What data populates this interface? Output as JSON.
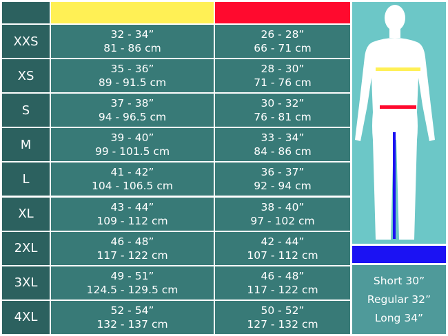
{
  "header": {
    "chest_color": "#fff055",
    "waist_color": "#ff0a2e"
  },
  "rows": [
    {
      "size": "XXS",
      "chest_in": "32 - 34”",
      "chest_cm": "81 - 86 cm",
      "waist_in": "26 - 28”",
      "waist_cm": "66 - 71 cm"
    },
    {
      "size": "XS",
      "chest_in": "35 - 36”",
      "chest_cm": "89 - 91.5 cm",
      "waist_in": "28 - 30”",
      "waist_cm": "71 - 76 cm"
    },
    {
      "size": "S",
      "chest_in": "37 - 38”",
      "chest_cm": "94 - 96.5 cm",
      "waist_in": "30 - 32”",
      "waist_cm": "76 - 81 cm"
    },
    {
      "size": "M",
      "chest_in": "39 - 40”",
      "chest_cm": "99 - 101.5 cm",
      "waist_in": "33 - 34”",
      "waist_cm": "84 - 86 cm"
    },
    {
      "size": "L",
      "chest_in": "41 - 42”",
      "chest_cm": "104 - 106.5 cm",
      "waist_in": "36 - 37”",
      "waist_cm": "92 - 94 cm"
    },
    {
      "size": "XL",
      "chest_in": "43 - 44”",
      "chest_cm": "109 - 112 cm",
      "waist_in": "38 - 40”",
      "waist_cm": "97 - 102 cm"
    },
    {
      "size": "2XL",
      "chest_in": "46 - 48”",
      "chest_cm": "117 - 122 cm",
      "waist_in": "42 - 44”",
      "waist_cm": "107 - 112 cm"
    },
    {
      "size": "3XL",
      "chest_in": "49 - 51”",
      "chest_cm": "124.5 - 129.5 cm",
      "waist_in": "46 - 48”",
      "waist_cm": "117 - 122 cm"
    },
    {
      "size": "4XL",
      "chest_in": "52 - 54”",
      "chest_cm": "132 - 137 cm",
      "waist_in": "50 - 52”",
      "waist_cm": "127 - 132 cm"
    }
  ],
  "inseam": {
    "color": "#1b12f3",
    "options": [
      "Short 30”",
      "Regular 32”",
      "Long 34”"
    ]
  }
}
